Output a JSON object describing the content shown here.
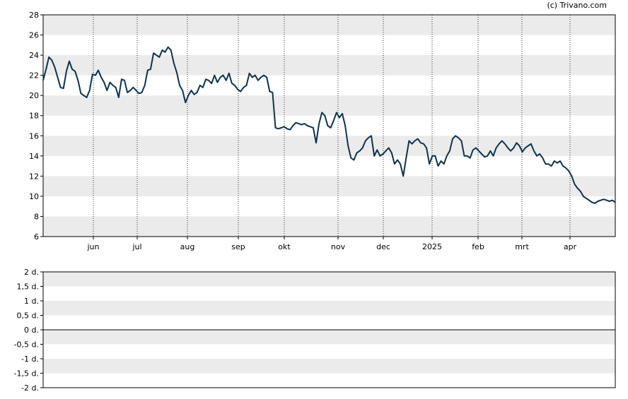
{
  "credit": "(c) Trivano.com",
  "chart_data": [
    {
      "type": "line",
      "ylim": [
        6,
        28
      ],
      "y_ticks": [
        6,
        8,
        10,
        12,
        14,
        16,
        18,
        20,
        22,
        24,
        26,
        28
      ],
      "x_ticks": [
        "jun",
        "jul",
        "aug",
        "sep",
        "okt",
        "nov",
        "dec",
        "2025",
        "feb",
        "mrt",
        "apr"
      ],
      "grid": "alternating bands, dotted vertical month lines",
      "series": [
        {
          "color": "#0d3350",
          "values": [
            21.5,
            22.6,
            23.8,
            23.5,
            22.8,
            21.8,
            20.8,
            20.7,
            22.4,
            23.4,
            22.6,
            22.4,
            21.5,
            20.2,
            20.0,
            19.8,
            20.5,
            22.1,
            22.0,
            22.5,
            21.8,
            21.3,
            20.5,
            21.3,
            21.0,
            20.8,
            19.8,
            21.6,
            21.5,
            20.3,
            20.5,
            20.8,
            20.5,
            20.2,
            20.3,
            21.0,
            22.5,
            22.6,
            24.2,
            24.0,
            23.8,
            24.5,
            24.3,
            24.8,
            24.5,
            23.2,
            22.3,
            21.0,
            20.5,
            19.3,
            20.0,
            20.5,
            20.1,
            20.3,
            21.0,
            20.8,
            21.6,
            21.5,
            21.2,
            22.0,
            21.3,
            21.8,
            22.0,
            21.5,
            22.2,
            21.2,
            21.0,
            20.6,
            20.4,
            20.8,
            21.0,
            22.2,
            21.8,
            22.0,
            21.5,
            21.8,
            22.0,
            21.8,
            20.4,
            20.3,
            16.8,
            16.7,
            16.8,
            16.9,
            16.7,
            16.6,
            17.0,
            17.3,
            17.2,
            17.1,
            17.2,
            17.0,
            16.9,
            16.8,
            15.3,
            17.2,
            18.3,
            18.0,
            17.0,
            16.8,
            17.5,
            18.3,
            17.8,
            18.2,
            17.0,
            15.0,
            13.8,
            13.6,
            14.3,
            14.5,
            14.8,
            15.5,
            15.8,
            16.0,
            14.0,
            14.6,
            14.0,
            14.2,
            14.5,
            14.8,
            14.3,
            13.2,
            13.6,
            13.2,
            12.0,
            13.8,
            15.5,
            15.2,
            15.5,
            15.7,
            15.3,
            15.2,
            14.8,
            13.2,
            14.0,
            14.0,
            13.0,
            13.5,
            13.2,
            14.0,
            14.5,
            15.7,
            16.0,
            15.8,
            15.5,
            14.0,
            14.0,
            13.8,
            14.6,
            14.8,
            14.5,
            14.2,
            13.9,
            14.0,
            14.5,
            14.0,
            14.8,
            15.2,
            15.5,
            15.2,
            14.8,
            14.5,
            14.8,
            15.3,
            15.0,
            14.4,
            14.8,
            15.0,
            15.2,
            14.5,
            14.0,
            14.2,
            13.8,
            13.2,
            13.2,
            13.0,
            13.5,
            13.3,
            13.5,
            13.0,
            12.8,
            12.5,
            12.0,
            11.2,
            10.8,
            10.5,
            10.0,
            9.8,
            9.6,
            9.4,
            9.3,
            9.5,
            9.6,
            9.7,
            9.6,
            9.5,
            9.6,
            9.4
          ]
        }
      ]
    },
    {
      "type": "bar",
      "ylim": [
        -2,
        2
      ],
      "y_ticks": [
        "2 d.",
        "1,5 d.",
        "1 d.",
        "0,5 d.",
        "0 d.",
        "-0,5 d.",
        "-1 d.",
        "-1,5 d.",
        "-2 d."
      ],
      "values": []
    }
  ]
}
